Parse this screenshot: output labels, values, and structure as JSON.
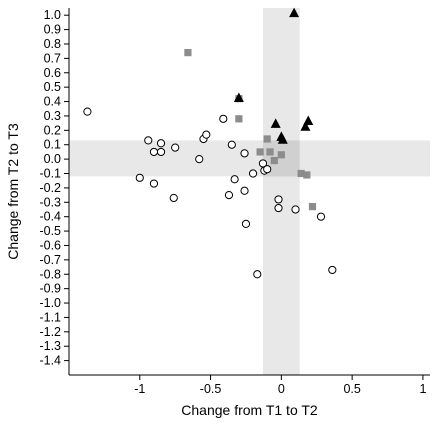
{
  "chart_data": {
    "type": "scatter",
    "title": "",
    "xlabel": "Change from T1 to T2",
    "ylabel": "Change from T2 to T3",
    "xlim": [
      -1.5,
      1.05
    ],
    "ylim": [
      -1.5,
      1.05
    ],
    "x_ticks": [
      -1,
      -0.5,
      0,
      0.5,
      1
    ],
    "x_tick_labels": [
      "-1",
      "-0.5",
      "0",
      "0.5",
      "1"
    ],
    "y_ticks": [
      1.0,
      0.9,
      0.8,
      0.7,
      0.6,
      0.5,
      0.4,
      0.3,
      0.2,
      0.1,
      0.0,
      -0.1,
      -0.2,
      -0.3,
      -0.4,
      -0.5,
      -0.6,
      -0.7,
      -0.8,
      -0.9,
      -1.0,
      -1.1,
      -1.2,
      -1.3,
      -1.4
    ],
    "y_tick_labels": [
      "1.0",
      "0.9",
      "0.8",
      "0.7",
      "0.6",
      "0.5",
      "0.4",
      "0.3",
      "0.2",
      "0.1",
      "0.0",
      "-0.1",
      "-0.2",
      "-0.3",
      "-0.4",
      "-0.5",
      "-0.6",
      "-0.7",
      "-0.8",
      "-0.9",
      "-1.0",
      "-1.1",
      "-1.2",
      "-1.3",
      "-1.4"
    ],
    "grid": false,
    "bands": {
      "x_band": [
        -0.13,
        0.13
      ],
      "y_band": [
        -0.12,
        0.13
      ],
      "color": "#e8e8e8",
      "center_color": "#d0d0d0"
    },
    "series": [
      {
        "marker": "circle-open",
        "color": "#000000",
        "points": [
          {
            "x": -1.37,
            "y": 0.33
          },
          {
            "x": -0.94,
            "y": 0.13
          },
          {
            "x": -0.85,
            "y": 0.11
          },
          {
            "x": -0.75,
            "y": 0.08
          },
          {
            "x": -0.9,
            "y": 0.05
          },
          {
            "x": -0.85,
            "y": 0.05
          },
          {
            "x": -1.0,
            "y": -0.13
          },
          {
            "x": -0.9,
            "y": -0.17
          },
          {
            "x": -0.76,
            "y": -0.27
          },
          {
            "x": -0.55,
            "y": 0.14
          },
          {
            "x": -0.53,
            "y": 0.17
          },
          {
            "x": -0.41,
            "y": 0.28
          },
          {
            "x": -0.58,
            "y": 0.0
          },
          {
            "x": -0.35,
            "y": 0.1
          },
          {
            "x": -0.26,
            "y": 0.04
          },
          {
            "x": -0.2,
            "y": -0.1
          },
          {
            "x": -0.13,
            "y": -0.03
          },
          {
            "x": -0.12,
            "y": -0.08
          },
          {
            "x": -0.1,
            "y": -0.07
          },
          {
            "x": -0.33,
            "y": -0.14
          },
          {
            "x": -0.37,
            "y": -0.25
          },
          {
            "x": -0.26,
            "y": -0.22
          },
          {
            "x": -0.25,
            "y": -0.45
          },
          {
            "x": -0.17,
            "y": -0.8
          },
          {
            "x": -0.02,
            "y": -0.28
          },
          {
            "x": -0.02,
            "y": -0.34
          },
          {
            "x": 0.1,
            "y": -0.35
          },
          {
            "x": 0.28,
            "y": -0.4
          },
          {
            "x": 0.36,
            "y": -0.77
          }
        ]
      },
      {
        "marker": "square",
        "color": "#8c8c8c",
        "points": [
          {
            "x": -0.66,
            "y": 0.74
          },
          {
            "x": -0.3,
            "y": 0.42
          },
          {
            "x": -0.3,
            "y": 0.28
          },
          {
            "x": -0.1,
            "y": 0.14
          },
          {
            "x": -0.15,
            "y": 0.05
          },
          {
            "x": -0.08,
            "y": 0.05
          },
          {
            "x": 0.0,
            "y": 0.03
          },
          {
            "x": -0.05,
            "y": -0.01
          },
          {
            "x": 0.14,
            "y": -0.1
          },
          {
            "x": 0.18,
            "y": -0.11
          },
          {
            "x": 0.22,
            "y": -0.33
          }
        ]
      },
      {
        "marker": "triangle",
        "color": "#000000",
        "points": [
          {
            "x": 0.09,
            "y": 1.02
          },
          {
            "x": -0.3,
            "y": 0.43
          },
          {
            "x": -0.04,
            "y": 0.25
          },
          {
            "x": 0.19,
            "y": 0.27
          },
          {
            "x": 0.17,
            "y": 0.23
          },
          {
            "x": 0.0,
            "y": 0.16
          },
          {
            "x": 0.01,
            "y": 0.14
          }
        ]
      }
    ]
  }
}
